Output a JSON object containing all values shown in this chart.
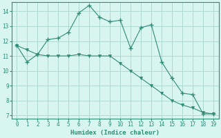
{
  "xlabel": "Humidex (Indice chaleur)",
  "x_line1": [
    0,
    1,
    2,
    3,
    4,
    5,
    6,
    7,
    8,
    9,
    10,
    11,
    12,
    13,
    14,
    15,
    16,
    17,
    18,
    19
  ],
  "y_line1": [
    11.7,
    10.6,
    11.1,
    12.1,
    12.2,
    12.6,
    13.9,
    14.4,
    13.6,
    13.3,
    13.4,
    11.5,
    12.9,
    13.1,
    10.6,
    9.5,
    8.5,
    8.4,
    7.1,
    7.1
  ],
  "x_line2": [
    0,
    1,
    2,
    3,
    4,
    5,
    6,
    7,
    8,
    9,
    10,
    11,
    12,
    13,
    14,
    15,
    16,
    17,
    18,
    19
  ],
  "y_line2": [
    11.7,
    11.4,
    11.1,
    11.0,
    11.0,
    11.0,
    11.1,
    11.0,
    11.0,
    11.0,
    10.5,
    10.0,
    9.5,
    9.0,
    8.5,
    8.0,
    7.7,
    7.5,
    7.2,
    7.1
  ],
  "line_color": "#2e8b77",
  "bg_color": "#d8f5f0",
  "grid_color": "#afd8d3",
  "ylim_min": 6.8,
  "ylim_max": 14.6,
  "xlim_min": -0.5,
  "xlim_max": 19.5,
  "yticks": [
    7,
    8,
    9,
    10,
    11,
    12,
    13,
    14
  ],
  "xticks": [
    0,
    1,
    2,
    3,
    4,
    5,
    6,
    7,
    8,
    9,
    10,
    11,
    12,
    13,
    14,
    15,
    16,
    17,
    18,
    19
  ],
  "tick_fontsize": 5.5,
  "xlabel_fontsize": 6.5
}
